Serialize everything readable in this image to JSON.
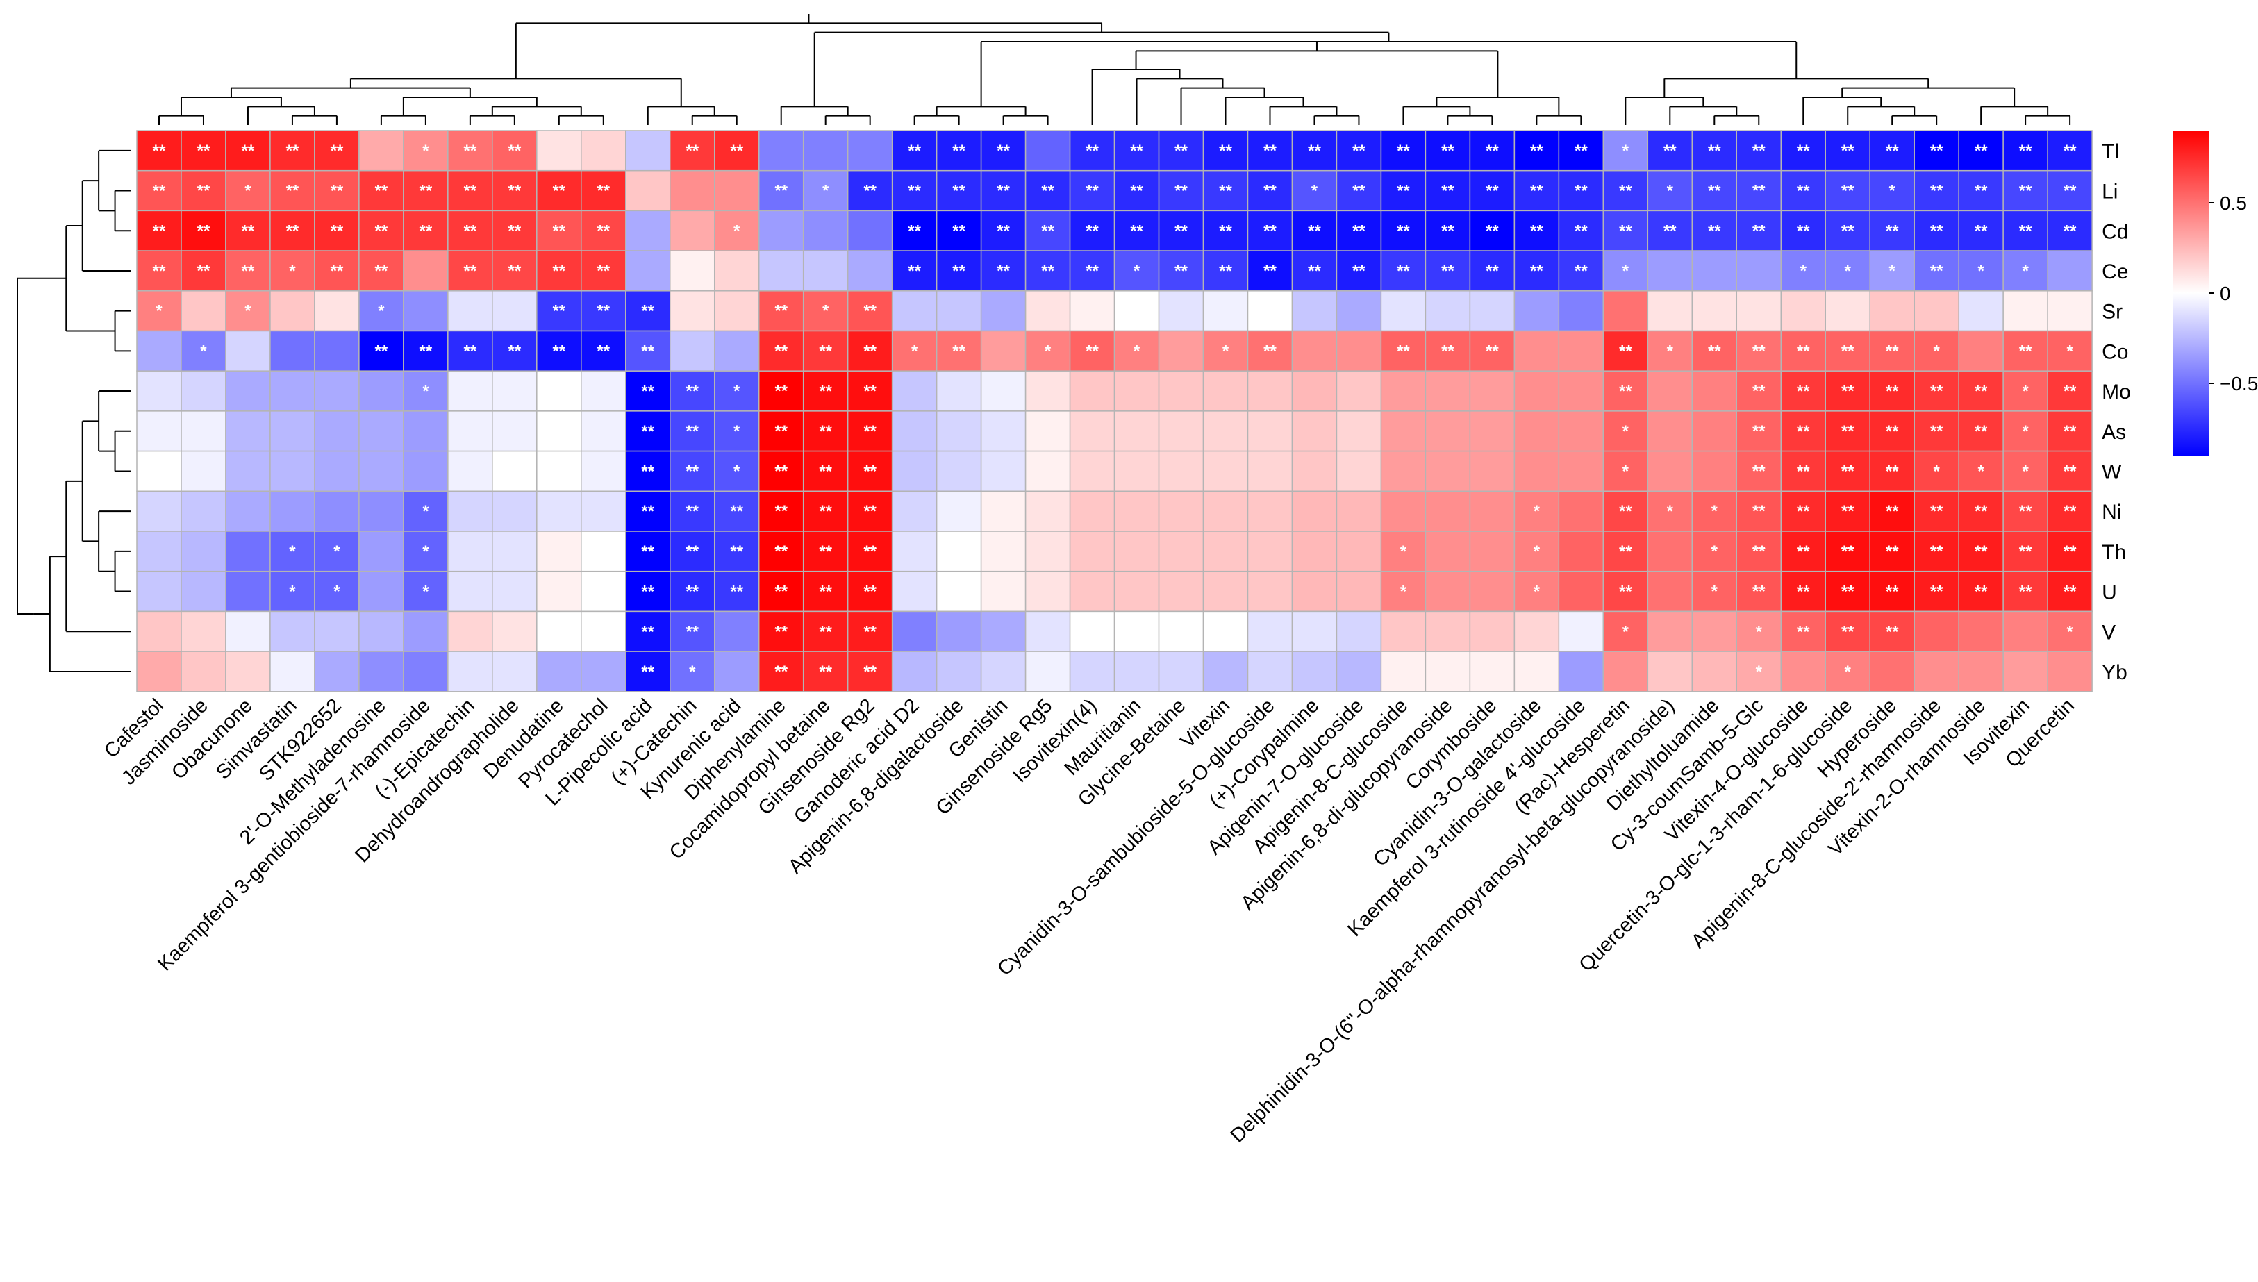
{
  "chart_data": {
    "type": "heatmap",
    "rows": [
      "Tl",
      "Li",
      "Cd",
      "Ce",
      "Sr",
      "Co",
      "Mo",
      "As",
      "W",
      "Ni",
      "Th",
      "U",
      "V",
      "Yb"
    ],
    "columns": [
      "Cafestol",
      "Jasminoside",
      "Obacunone",
      "Simvastatin",
      "STK922652",
      "2'-O-Methyladenosine",
      "Kaempferol 3-gentiobioside-7-rhamnoside",
      "(-)-Epicatechin",
      "Dehydroandrographolide",
      "Denudatine",
      "Pyrocatechol",
      "L-Pipecolic acid",
      "(+)-Catechin",
      "Kynurenic acid",
      "Diphenylamine",
      "Cocamidopropyl betaine",
      "Ginsenoside Rg2",
      "Ganoderic acid D2",
      "Apigenin-6,8-digalactoside",
      "Genistin",
      "Ginsenoside Rg5",
      "Isovitexin(4)",
      "Mauritianin",
      "Glycine-Betaine",
      "Vitexin",
      "Cyanidin-3-O-sambubioside-5-O-glucoside",
      "(+)-Corypalmine",
      "Apigenin-7-O-glucoside",
      "Apigenin-8-C-glucoside",
      "Apigenin-6,8-di-glucopyranoside",
      "Corymboside",
      "Cyanidin-3-O-galactoside",
      "Kaempferol 3-rutinoside 4'-glucoside",
      "(Rac)-Hesperetin",
      "Delphinidin-3-O-(6''-O-alpha-rhamnopyranosyl-beta-glucopyranoside)",
      "Diethyltoluamide",
      "Cy-3-coumSamb-5-Glc",
      "Vitexin-4-O-glucoside",
      "Quercetin-3-O-glc-1-3-rham-1-6-glucoside",
      "Hyperoside",
      "Apigenin-8-C-glucoside-2'-rhamnoside",
      "Vitexin-2-O-rhamnoside",
      "Isovitexin",
      "Quercetin"
    ],
    "values": [
      [
        0.8,
        0.8,
        0.8,
        0.75,
        0.75,
        0.3,
        0.4,
        0.5,
        0.55,
        0.1,
        0.15,
        -0.2,
        0.7,
        0.75,
        -0.45,
        -0.45,
        -0.45,
        -0.8,
        -0.8,
        -0.8,
        -0.55,
        -0.75,
        -0.75,
        -0.75,
        -0.8,
        -0.8,
        -0.8,
        -0.8,
        -0.85,
        -0.85,
        -0.85,
        -0.9,
        -0.9,
        -0.4,
        -0.75,
        -0.75,
        -0.75,
        -0.8,
        -0.8,
        -0.8,
        -0.9,
        -0.9,
        -0.85,
        -0.8
      ],
      [
        0.6,
        0.65,
        0.55,
        0.6,
        0.6,
        0.7,
        0.7,
        0.7,
        0.7,
        0.75,
        0.75,
        0.2,
        0.4,
        0.4,
        -0.5,
        -0.4,
        -0.75,
        -0.75,
        -0.75,
        -0.75,
        -0.75,
        -0.7,
        -0.75,
        -0.7,
        -0.7,
        -0.75,
        -0.6,
        -0.7,
        -0.8,
        -0.8,
        -0.8,
        -0.75,
        -0.75,
        -0.7,
        -0.6,
        -0.65,
        -0.65,
        -0.7,
        -0.65,
        -0.65,
        -0.7,
        -0.7,
        -0.65,
        -0.65
      ],
      [
        0.8,
        0.85,
        0.75,
        0.75,
        0.75,
        0.7,
        0.7,
        0.7,
        0.7,
        0.6,
        0.65,
        -0.3,
        0.3,
        0.4,
        -0.35,
        -0.4,
        -0.5,
        -0.9,
        -0.95,
        -0.8,
        -0.65,
        -0.8,
        -0.8,
        -0.8,
        -0.8,
        -0.8,
        -0.85,
        -0.85,
        -0.85,
        -0.85,
        -0.9,
        -0.85,
        -0.75,
        -0.65,
        -0.7,
        -0.7,
        -0.7,
        -0.75,
        -0.7,
        -0.7,
        -0.75,
        -0.75,
        -0.75,
        -0.75
      ],
      [
        0.6,
        0.7,
        0.55,
        0.55,
        0.6,
        0.6,
        0.4,
        0.65,
        0.65,
        0.7,
        0.7,
        -0.3,
        0.05,
        0.15,
        -0.2,
        -0.2,
        -0.3,
        -0.8,
        -0.8,
        -0.75,
        -0.7,
        -0.7,
        -0.6,
        -0.65,
        -0.7,
        -0.85,
        -0.75,
        -0.8,
        -0.7,
        -0.7,
        -0.75,
        -0.75,
        -0.7,
        -0.4,
        -0.35,
        -0.35,
        -0.35,
        -0.45,
        -0.45,
        -0.35,
        -0.5,
        -0.5,
        -0.45,
        -0.35
      ],
      [
        0.45,
        0.2,
        0.4,
        0.2,
        0.1,
        -0.45,
        -0.4,
        -0.1,
        -0.1,
        -0.7,
        -0.7,
        -0.75,
        0.1,
        0.15,
        0.6,
        0.55,
        0.6,
        -0.2,
        -0.2,
        -0.3,
        0.1,
        0.05,
        0.0,
        -0.1,
        -0.05,
        0.0,
        -0.2,
        -0.3,
        -0.1,
        -0.15,
        -0.15,
        -0.35,
        -0.45,
        0.5,
        0.1,
        0.1,
        0.1,
        0.15,
        0.1,
        0.2,
        0.2,
        -0.1,
        0.05,
        0.05
      ],
      [
        -0.3,
        -0.45,
        -0.15,
        -0.5,
        -0.5,
        -0.9,
        -0.85,
        -0.75,
        -0.75,
        -0.85,
        -0.85,
        -0.6,
        -0.2,
        -0.3,
        0.75,
        0.7,
        0.8,
        0.5,
        0.5,
        0.35,
        0.45,
        0.55,
        0.45,
        0.35,
        0.45,
        0.5,
        0.4,
        0.4,
        0.55,
        0.55,
        0.55,
        0.4,
        0.4,
        0.75,
        0.45,
        0.55,
        0.5,
        0.55,
        0.55,
        0.55,
        0.55,
        0.45,
        0.55,
        0.55
      ],
      [
        -0.1,
        -0.15,
        -0.3,
        -0.3,
        -0.3,
        -0.35,
        -0.4,
        -0.05,
        -0.05,
        0.0,
        -0.05,
        -0.9,
        -0.65,
        -0.6,
        0.9,
        0.85,
        0.85,
        -0.2,
        -0.1,
        -0.05,
        0.1,
        0.2,
        0.2,
        0.2,
        0.2,
        0.2,
        0.25,
        0.2,
        0.35,
        0.35,
        0.35,
        0.4,
        0.4,
        0.55,
        0.4,
        0.45,
        0.55,
        0.7,
        0.75,
        0.75,
        0.7,
        0.7,
        0.55,
        0.7
      ],
      [
        -0.05,
        -0.05,
        -0.25,
        -0.25,
        -0.3,
        -0.3,
        -0.35,
        -0.05,
        -0.05,
        0.0,
        -0.05,
        -0.9,
        -0.65,
        -0.6,
        0.9,
        0.85,
        0.85,
        -0.2,
        -0.15,
        -0.1,
        0.05,
        0.15,
        0.15,
        0.15,
        0.15,
        0.15,
        0.2,
        0.15,
        0.35,
        0.35,
        0.35,
        0.4,
        0.4,
        0.55,
        0.4,
        0.45,
        0.55,
        0.7,
        0.75,
        0.75,
        0.7,
        0.7,
        0.55,
        0.7
      ],
      [
        0.0,
        -0.05,
        -0.25,
        -0.25,
        -0.3,
        -0.3,
        -0.35,
        -0.05,
        0.0,
        0.0,
        -0.05,
        -0.9,
        -0.65,
        -0.6,
        0.9,
        0.85,
        0.85,
        -0.2,
        -0.15,
        -0.1,
        0.05,
        0.15,
        0.15,
        0.15,
        0.15,
        0.15,
        0.2,
        0.15,
        0.35,
        0.35,
        0.35,
        0.4,
        0.4,
        0.55,
        0.4,
        0.45,
        0.55,
        0.7,
        0.75,
        0.75,
        0.65,
        0.6,
        0.55,
        0.7
      ],
      [
        -0.15,
        -0.2,
        -0.3,
        -0.35,
        -0.4,
        -0.4,
        -0.55,
        -0.15,
        -0.15,
        -0.1,
        -0.1,
        -0.9,
        -0.7,
        -0.65,
        0.9,
        0.85,
        0.85,
        -0.15,
        -0.05,
        0.05,
        0.1,
        0.2,
        0.2,
        0.2,
        0.2,
        0.2,
        0.25,
        0.25,
        0.4,
        0.4,
        0.4,
        0.45,
        0.5,
        0.65,
        0.5,
        0.55,
        0.6,
        0.75,
        0.8,
        0.85,
        0.75,
        0.75,
        0.65,
        0.75
      ],
      [
        -0.2,
        -0.25,
        -0.5,
        -0.55,
        -0.55,
        -0.35,
        -0.55,
        -0.1,
        -0.1,
        0.05,
        0.0,
        -0.9,
        -0.75,
        -0.7,
        0.9,
        0.85,
        0.85,
        -0.1,
        0.0,
        0.05,
        0.1,
        0.2,
        0.2,
        0.2,
        0.2,
        0.2,
        0.25,
        0.25,
        0.45,
        0.4,
        0.4,
        0.45,
        0.55,
        0.65,
        0.5,
        0.55,
        0.6,
        0.8,
        0.85,
        0.85,
        0.8,
        0.8,
        0.7,
        0.8
      ],
      [
        -0.2,
        -0.25,
        -0.5,
        -0.55,
        -0.55,
        -0.35,
        -0.55,
        -0.1,
        -0.1,
        0.05,
        0.0,
        -0.9,
        -0.75,
        -0.7,
        0.9,
        0.85,
        0.85,
        -0.1,
        0.0,
        0.05,
        0.1,
        0.2,
        0.2,
        0.2,
        0.2,
        0.2,
        0.25,
        0.25,
        0.45,
        0.4,
        0.4,
        0.45,
        0.55,
        0.65,
        0.5,
        0.55,
        0.6,
        0.8,
        0.85,
        0.85,
        0.8,
        0.8,
        0.7,
        0.8
      ],
      [
        0.2,
        0.15,
        -0.05,
        -0.2,
        -0.2,
        -0.25,
        -0.35,
        0.15,
        0.1,
        0.0,
        0.0,
        -0.85,
        -0.6,
        -0.45,
        0.85,
        0.8,
        0.8,
        -0.45,
        -0.35,
        -0.3,
        -0.1,
        0.0,
        0.0,
        0.0,
        0.0,
        -0.1,
        -0.1,
        -0.15,
        0.2,
        0.2,
        0.2,
        0.15,
        -0.05,
        0.55,
        0.35,
        0.35,
        0.4,
        0.55,
        0.65,
        0.65,
        0.55,
        0.5,
        0.45,
        0.5
      ],
      [
        0.3,
        0.2,
        0.15,
        -0.05,
        -0.3,
        -0.4,
        -0.45,
        -0.1,
        -0.1,
        -0.3,
        -0.3,
        -0.85,
        -0.5,
        -0.35,
        0.8,
        0.75,
        0.75,
        -0.25,
        -0.2,
        -0.15,
        -0.05,
        -0.15,
        -0.15,
        -0.15,
        -0.25,
        -0.15,
        -0.2,
        -0.25,
        0.05,
        0.05,
        0.05,
        0.05,
        -0.35,
        0.4,
        0.2,
        0.25,
        0.3,
        0.4,
        0.45,
        0.5,
        0.4,
        0.4,
        0.35,
        0.4
      ]
    ],
    "significance": [
      [
        "**",
        "**",
        "**",
        "**",
        "**",
        "",
        "*",
        "**",
        "**",
        "",
        "",
        "",
        "**",
        "**",
        "",
        "",
        "",
        "**",
        "**",
        "**",
        "",
        "**",
        "**",
        "**",
        "**",
        "**",
        "**",
        "**",
        "**",
        "**",
        "**",
        "**",
        "**",
        "*",
        "**",
        "**",
        "**",
        "**",
        "**",
        "**",
        "**",
        "**",
        "**",
        "**"
      ],
      [
        "**",
        "**",
        "*",
        "**",
        "**",
        "**",
        "**",
        "**",
        "**",
        "**",
        "**",
        "",
        "",
        "",
        "**",
        "*",
        "**",
        "**",
        "**",
        "**",
        "**",
        "**",
        "**",
        "**",
        "**",
        "**",
        "*",
        "**",
        "**",
        "**",
        "**",
        "**",
        "**",
        "**",
        "*",
        "**",
        "**",
        "**",
        "**",
        "*",
        "**",
        "**",
        "**",
        "**"
      ],
      [
        "**",
        "**",
        "**",
        "**",
        "**",
        "**",
        "**",
        "**",
        "**",
        "**",
        "**",
        "",
        "",
        "*",
        "",
        "",
        "",
        "**",
        "**",
        "**",
        "**",
        "**",
        "**",
        "**",
        "**",
        "**",
        "**",
        "**",
        "**",
        "**",
        "**",
        "**",
        "**",
        "**",
        "**",
        "**",
        "**",
        "**",
        "**",
        "**",
        "**",
        "**",
        "**",
        "**"
      ],
      [
        "**",
        "**",
        "**",
        "*",
        "**",
        "**",
        "",
        "**",
        "**",
        "**",
        "**",
        "",
        "",
        "",
        "",
        "",
        "",
        "**",
        "**",
        "**",
        "**",
        "**",
        "*",
        "**",
        "**",
        "**",
        "**",
        "**",
        "**",
        "**",
        "**",
        "**",
        "**",
        "*",
        "",
        "",
        "",
        "*",
        "*",
        "*",
        "**",
        "*",
        "*",
        ""
      ],
      [
        "*",
        "",
        "*",
        "",
        "",
        "*",
        "",
        "",
        "",
        "**",
        "**",
        "**",
        "",
        "",
        "**",
        "*",
        "**",
        "",
        "",
        "",
        "",
        "",
        "",
        "",
        "",
        "",
        "",
        "",
        "",
        "",
        "",
        "",
        "",
        "",
        "",
        "",
        "",
        "",
        "",
        "",
        "",
        "",
        "",
        ""
      ],
      [
        "",
        "*",
        "",
        "",
        "",
        "**",
        "**",
        "**",
        "**",
        "**",
        "**",
        "**",
        "",
        "",
        "**",
        "**",
        "**",
        "*",
        "**",
        "",
        "*",
        "**",
        "*",
        "",
        "*",
        "**",
        "",
        "",
        "**",
        "**",
        "**",
        "",
        "",
        "**",
        "*",
        "**",
        "**",
        "**",
        "**",
        "**",
        "*",
        "",
        "**",
        "*"
      ],
      [
        "",
        "",
        "",
        "",
        "",
        "",
        "*",
        "",
        "",
        "",
        "",
        "**",
        "**",
        "*",
        "**",
        "**",
        "**",
        "",
        "",
        "",
        "",
        "",
        "",
        "",
        "",
        "",
        "",
        "",
        "",
        "",
        "",
        "",
        "",
        "**",
        "",
        "",
        "**",
        "**",
        "**",
        "**",
        "**",
        "**",
        "*",
        "**"
      ],
      [
        "",
        "",
        "",
        "",
        "",
        "",
        "",
        "",
        "",
        "",
        "",
        "**",
        "**",
        "*",
        "**",
        "**",
        "**",
        "",
        "",
        "",
        "",
        "",
        "",
        "",
        "",
        "",
        "",
        "",
        "",
        "",
        "",
        "",
        "",
        "*",
        "",
        "",
        "**",
        "**",
        "**",
        "**",
        "**",
        "**",
        "*",
        "**"
      ],
      [
        "",
        "",
        "",
        "",
        "",
        "",
        "",
        "",
        "",
        "",
        "",
        "**",
        "**",
        "*",
        "**",
        "**",
        "**",
        "",
        "",
        "",
        "",
        "",
        "",
        "",
        "",
        "",
        "",
        "",
        "",
        "",
        "",
        "",
        "",
        "*",
        "",
        "",
        "**",
        "**",
        "**",
        "**",
        "*",
        "*",
        "*",
        "**"
      ],
      [
        "",
        "",
        "",
        "",
        "",
        "",
        "*",
        "",
        "",
        "",
        "",
        "**",
        "**",
        "**",
        "**",
        "**",
        "**",
        "",
        "",
        "",
        "",
        "",
        "",
        "",
        "",
        "",
        "",
        "",
        "",
        "",
        "",
        "*",
        "",
        "**",
        "*",
        "*",
        "**",
        "**",
        "**",
        "**",
        "**",
        "**",
        "**",
        "**"
      ],
      [
        "",
        "",
        "",
        "*",
        "*",
        "",
        "*",
        "",
        "",
        "",
        "",
        "**",
        "**",
        "**",
        "**",
        "**",
        "**",
        "",
        "",
        "",
        "",
        "",
        "",
        "",
        "",
        "",
        "",
        "",
        "*",
        "",
        "",
        "*",
        "",
        "**",
        "",
        "*",
        "**",
        "**",
        "**",
        "**",
        "**",
        "**",
        "**",
        "**"
      ],
      [
        "",
        "",
        "",
        "*",
        "*",
        "",
        "*",
        "",
        "",
        "",
        "",
        "**",
        "**",
        "**",
        "**",
        "**",
        "**",
        "",
        "",
        "",
        "",
        "",
        "",
        "",
        "",
        "",
        "",
        "",
        "*",
        "",
        "",
        "*",
        "",
        "**",
        "",
        "*",
        "**",
        "**",
        "**",
        "**",
        "**",
        "**",
        "**",
        "**"
      ],
      [
        "",
        "",
        "",
        "",
        "",
        "",
        "",
        "",
        "",
        "",
        "",
        "**",
        "**",
        "",
        "**",
        "**",
        "**",
        "",
        "",
        "",
        "",
        "",
        "",
        "",
        "",
        "",
        "",
        "",
        "",
        "",
        "",
        "",
        "",
        "*",
        "",
        "",
        "*",
        "**",
        "**",
        "**",
        "",
        "",
        "",
        "*"
      ],
      [
        "",
        "",
        "",
        "",
        "",
        "",
        "",
        "",
        "",
        "",
        "",
        "**",
        "*",
        "",
        "**",
        "**",
        "**",
        "",
        "",
        "",
        "",
        "",
        "",
        "",
        "",
        "",
        "",
        "",
        "",
        "",
        "",
        "",
        "",
        "",
        "",
        "",
        "*",
        "",
        "*",
        "",
        "",
        "",
        ""
      ]
    ],
    "color_scale": {
      "min": -0.9,
      "mid": 0,
      "max": 0.9,
      "low_color": "#0000ff",
      "mid_color": "#ffffff",
      "high_color": "#ff0000"
    },
    "legend": {
      "position": "right",
      "ticks": [
        0.5,
        0,
        -0.5
      ],
      "tick_labels": [
        "0.5",
        "0",
        "−0.5"
      ]
    },
    "row_dendrogram": {
      "position": "left"
    },
    "column_dendrogram": {
      "position": "top"
    },
    "grid": true,
    "cell_border_color": "#b4b4b4",
    "mark_color": "#ffffff",
    "label_color": "#000000"
  }
}
